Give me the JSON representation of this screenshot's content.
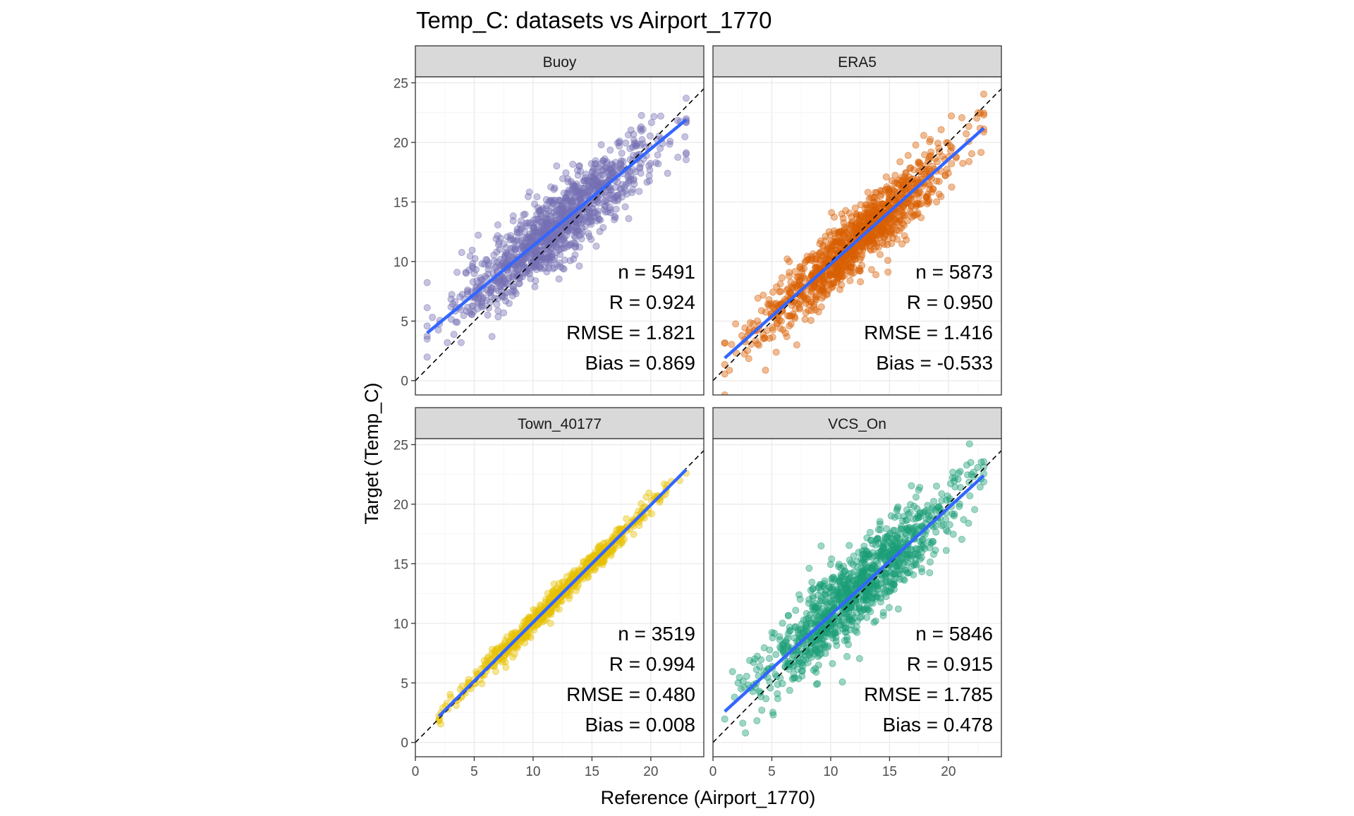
{
  "chart_data": {
    "type": "scatter",
    "title": "Temp_C: datasets vs Airport_1770",
    "xlabel": "Reference (Airport_1770)",
    "ylabel": "Target (Temp_C)",
    "xlim": [
      0,
      24.5
    ],
    "ylim": [
      -1.2,
      25.5
    ],
    "x_ticks": [
      0,
      5,
      10,
      15,
      20
    ],
    "y_ticks": [
      0,
      5,
      10,
      15,
      20,
      25
    ],
    "reference_line": "y = x (dashed)",
    "panels": [
      {
        "name": "Buoy",
        "color": "#7570b3",
        "fit_line": {
          "x": [
            1.0,
            23.0
          ],
          "y": [
            4.0,
            21.9
          ]
        },
        "stats": {
          "n": "n = 5491",
          "r": "R = 0.924",
          "rmse": "RMSE = 1.821",
          "bias": "Bias = 0.869"
        }
      },
      {
        "name": "ERA5",
        "color": "#d95f02",
        "fit_line": {
          "x": [
            1.0,
            23.0
          ],
          "y": [
            1.9,
            21.2
          ]
        },
        "stats": {
          "n": "n = 5873",
          "r": "R = 0.950",
          "rmse": "RMSE = 1.416",
          "bias": "Bias = -0.533"
        }
      },
      {
        "name": "Town_40177",
        "color": "#e6c000",
        "fit_line": {
          "x": [
            2.0,
            23.0
          ],
          "y": [
            2.2,
            22.9
          ]
        },
        "stats": {
          "n": "n = 3519",
          "r": "R = 0.994",
          "rmse": "RMSE = 0.480",
          "bias": "Bias = 0.008"
        }
      },
      {
        "name": "VCS_On",
        "color": "#1b9e77",
        "fit_line": {
          "x": [
            1.0,
            23.0
          ],
          "y": [
            2.6,
            22.4
          ]
        },
        "stats": {
          "n": "n = 5846",
          "r": "R = 0.915",
          "rmse": "RMSE = 1.785",
          "bias": "Bias = 0.478"
        }
      }
    ],
    "fit_color": "#3366ff"
  }
}
